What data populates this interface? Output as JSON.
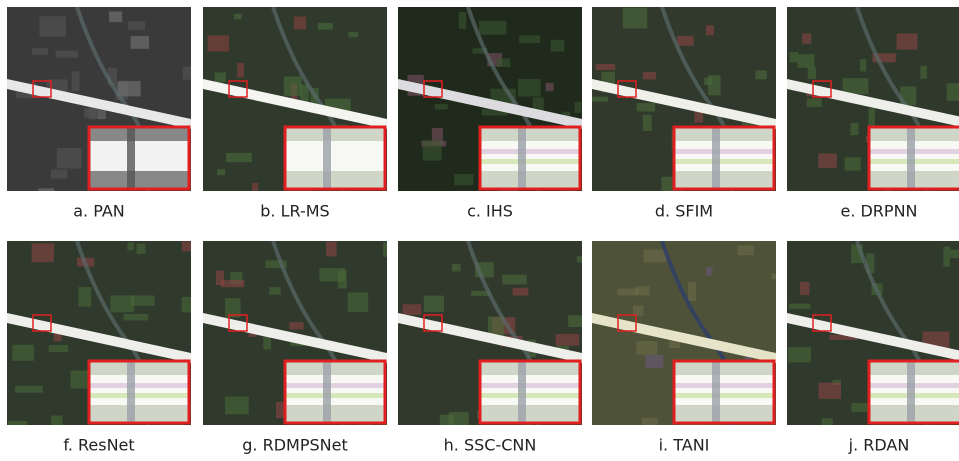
{
  "panels": [
    {
      "caption": "a. PAN"
    },
    {
      "caption": "b. LR-MS"
    },
    {
      "caption": "c. IHS"
    },
    {
      "caption": "d. SFIM"
    },
    {
      "caption": "e. DRPNN"
    },
    {
      "caption": "f. ResNet"
    },
    {
      "caption": "g. RDMPSNet"
    },
    {
      "caption": "h. SSC-CNN"
    },
    {
      "caption": "i. TANI"
    },
    {
      "caption": "j. RDAN"
    }
  ]
}
